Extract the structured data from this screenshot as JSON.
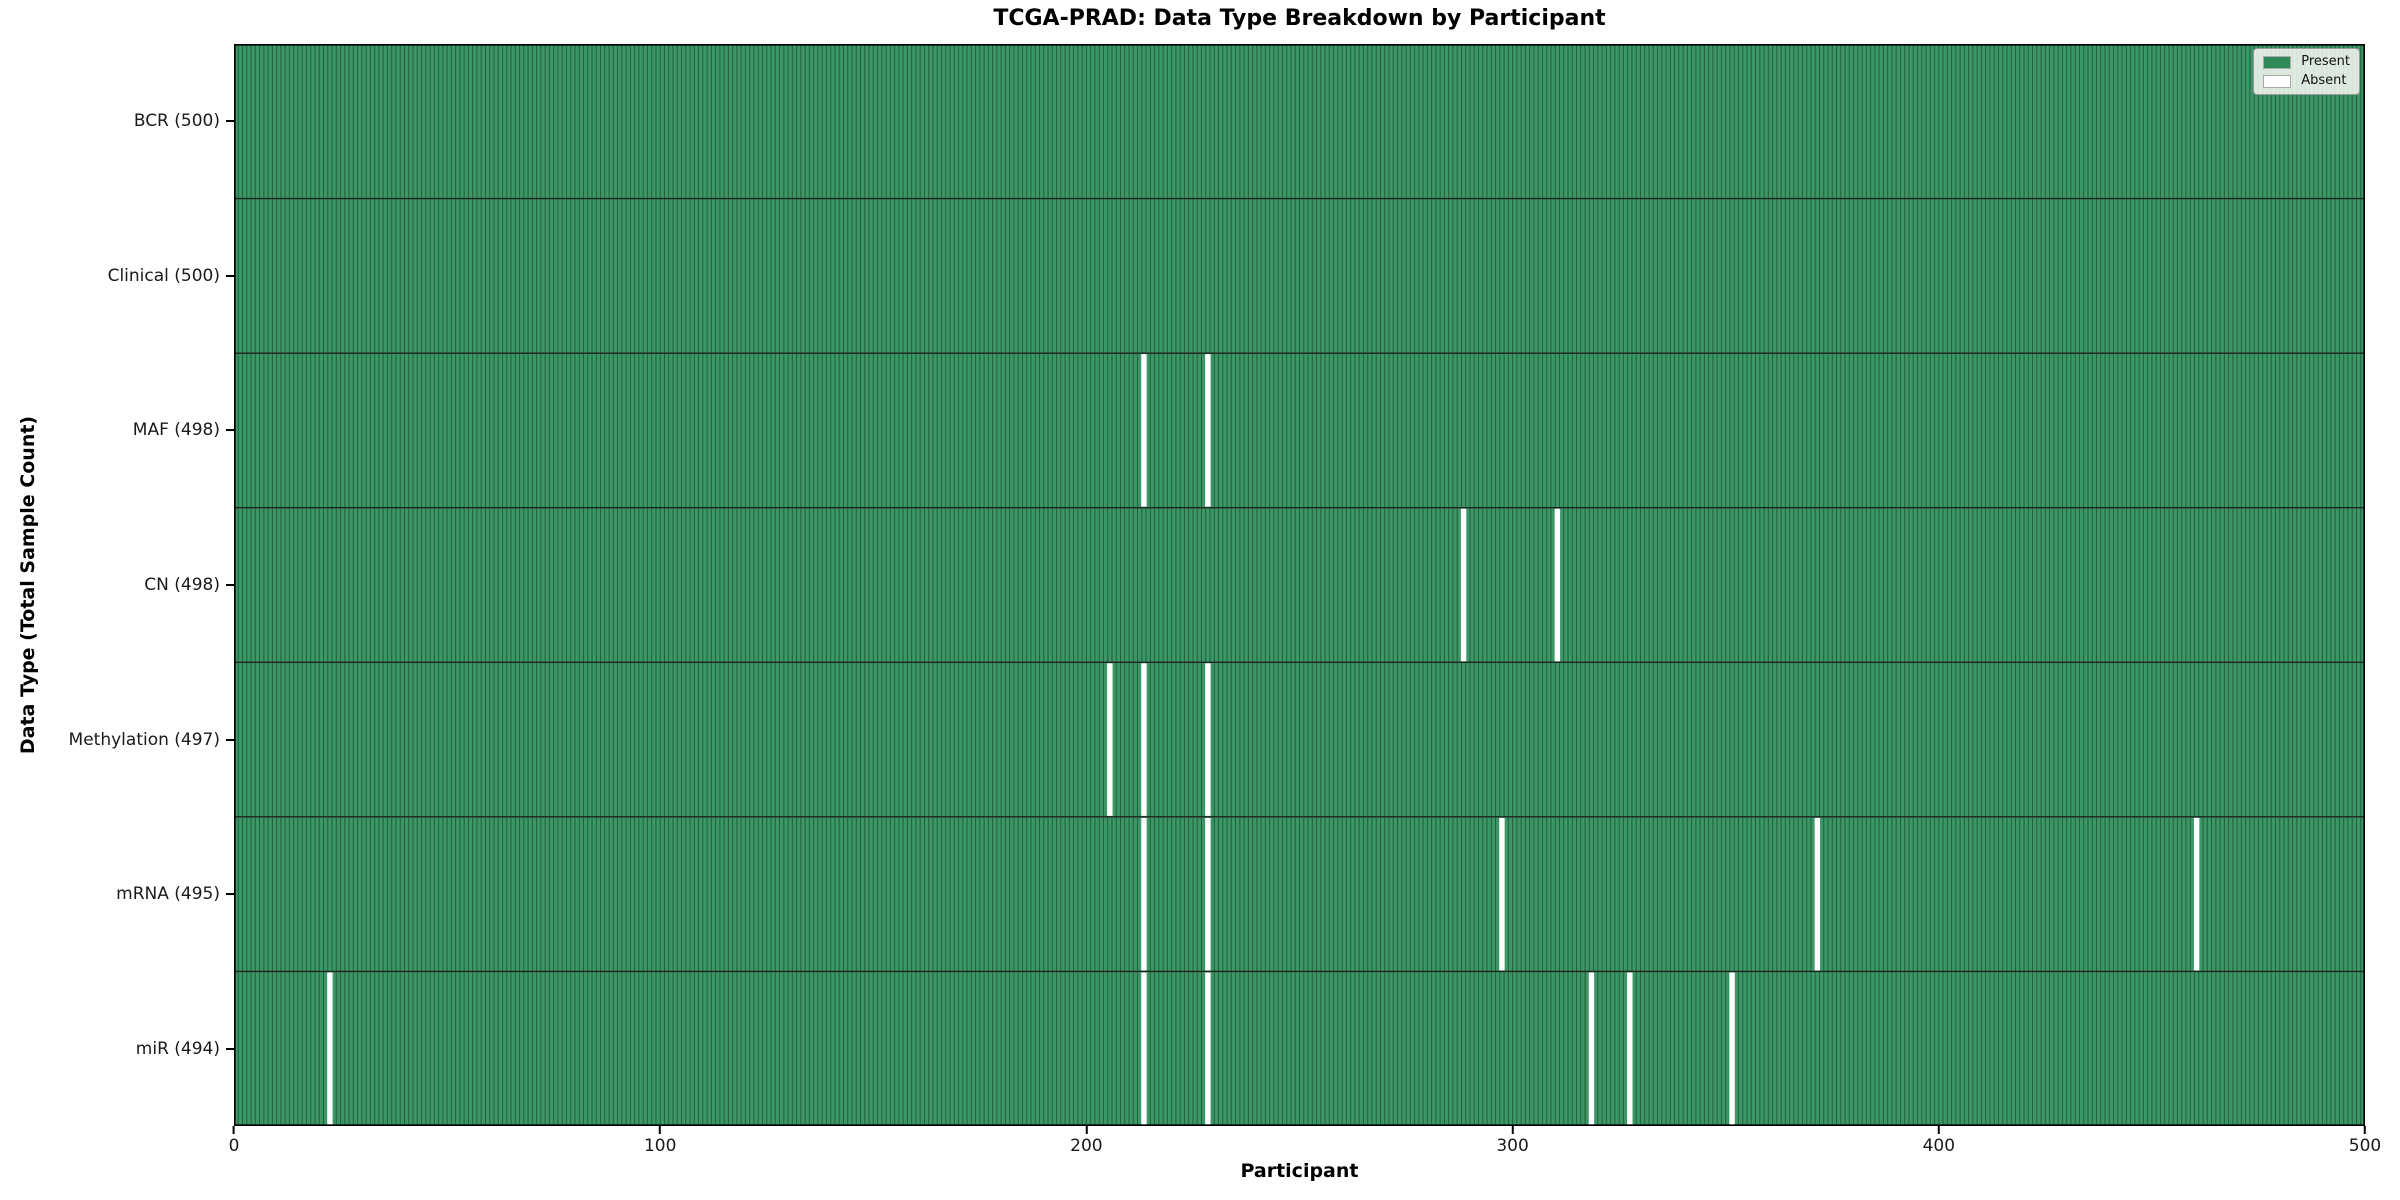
{
  "chart_data": {
    "type": "heatmap",
    "title": "TCGA-PRAD: Data Type Breakdown by Participant",
    "xlabel": "Participant",
    "ylabel": "Data Type (Total Sample Count)",
    "x_range": [
      0,
      500
    ],
    "n_participants": 500,
    "x_tick_labels": [
      "0",
      "100",
      "200",
      "300",
      "400",
      "500"
    ],
    "legend_position": "upper right",
    "legend": [
      {
        "label": "Present",
        "color": "#2e8b57"
      },
      {
        "label": "Absent",
        "color": "#ffffff"
      }
    ],
    "rows": [
      {
        "label": "BCR (500)",
        "data_type": "BCR",
        "total": 500,
        "absent_participants": []
      },
      {
        "label": "Clinical (500)",
        "data_type": "Clinical",
        "total": 500,
        "absent_participants": []
      },
      {
        "label": "MAF (498)",
        "data_type": "MAF",
        "total": 498,
        "absent_participants": [
          213,
          228
        ]
      },
      {
        "label": "CN (498)",
        "data_type": "CN",
        "total": 498,
        "absent_participants": [
          288,
          310
        ]
      },
      {
        "label": "Methylation (497)",
        "data_type": "Methylation",
        "total": 497,
        "absent_participants": [
          205,
          213,
          228
        ]
      },
      {
        "label": "mRNA (495)",
        "data_type": "mRNA",
        "total": 495,
        "absent_participants": [
          213,
          228,
          297,
          371,
          460
        ]
      },
      {
        "label": "miR (494)",
        "data_type": "miR",
        "total": 494,
        "absent_participants": [
          22,
          213,
          228,
          318,
          327,
          351
        ]
      }
    ],
    "colors": {
      "present_fill": "#3c9766",
      "bar_edge": "#20593a",
      "absent": "#ffffff",
      "row_divider": "#1c241f",
      "spine": "#000000"
    }
  }
}
